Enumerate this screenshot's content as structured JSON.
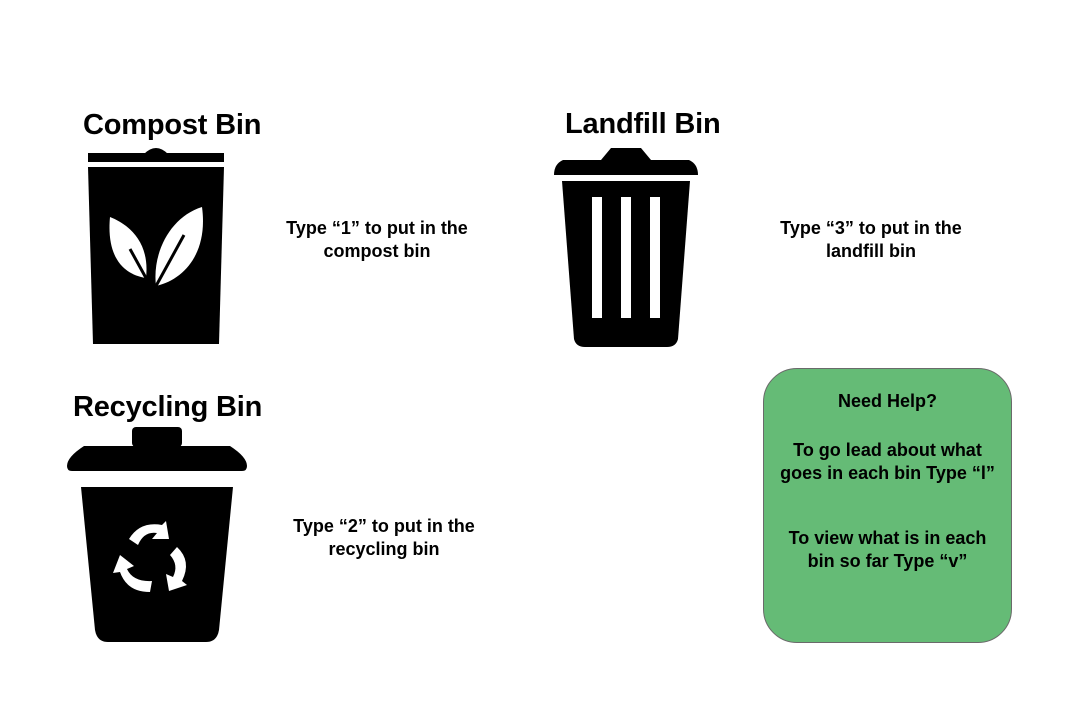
{
  "compost": {
    "title": "Compost Bin",
    "instruction_line1": "Type “1” to put in the",
    "instruction_line2": "compost bin"
  },
  "landfill": {
    "title": "Landfill Bin",
    "instruction_line1": "Type “3” to put in the",
    "instruction_line2": "landfill bin"
  },
  "recycling": {
    "title": "Recycling Bin",
    "instruction_line1": "Type “2” to put in the",
    "instruction_line2": "recycling bin"
  },
  "help": {
    "title": "Need Help?",
    "learn_line1": "To go lead about what",
    "learn_line2": "goes in each bin Type “l”",
    "view_line1": "To view what is in each",
    "view_line2": "bin so far Type “v”"
  },
  "icons": {
    "compost": "compost-bin-icon",
    "landfill": "trash-can-icon",
    "recycling": "recycling-bin-icon"
  },
  "colors": {
    "help_box_background": "#65bb76",
    "icon_fill": "#000000",
    "background": "#ffffff"
  }
}
